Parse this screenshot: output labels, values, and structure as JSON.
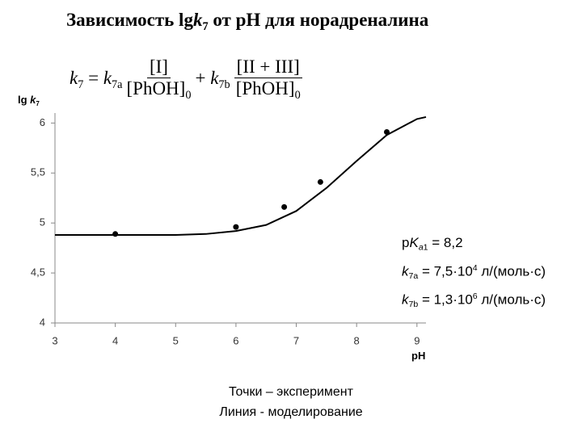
{
  "title": [
    {
      "text": "Зависимость lg",
      "style": "normal"
    },
    {
      "text": "k",
      "style": "italic"
    },
    {
      "text": "7",
      "style": "sub"
    },
    {
      "text": " от pH для норадреналина",
      "style": "normal"
    }
  ],
  "formula": [
    {
      "segments": [
        {
          "text": "k",
          "style": "italic"
        },
        {
          "text": "7",
          "style": "sub"
        },
        {
          "text": " = ",
          "style": "normal"
        },
        {
          "text": "k",
          "style": "italic"
        },
        {
          "text": "7a",
          "style": "sub"
        }
      ]
    },
    {
      "num": [
        {
          "text": "[I]",
          "style": "normal"
        }
      ],
      "den": [
        {
          "text": "[PhOH]",
          "style": "normal"
        },
        {
          "text": "0",
          "style": "sub"
        }
      ]
    },
    {
      "segments": [
        {
          "text": " + ",
          "style": "normal"
        },
        {
          "text": "k",
          "style": "italic"
        },
        {
          "text": "7b",
          "style": "sub"
        }
      ]
    },
    {
      "num": [
        {
          "text": "[II + III]",
          "style": "normal"
        }
      ],
      "den": [
        {
          "text": "[PhOH]",
          "style": "normal"
        },
        {
          "text": "0",
          "style": "sub"
        }
      ]
    }
  ],
  "chart_data": {
    "type": "line",
    "y_label": [
      {
        "text": "lg ",
        "style": "normal"
      },
      {
        "text": "k",
        "style": "italic"
      },
      {
        "text": "7",
        "style": "sub"
      }
    ],
    "x_label": "pH",
    "xlim": [
      3,
      9.15
    ],
    "xticks": [
      3,
      4,
      5,
      6,
      7,
      8,
      9
    ],
    "ylim": [
      4,
      6.1
    ],
    "yticks": [
      4,
      {
        "value": 4.5,
        "label": "4,5"
      },
      5,
      {
        "value": 5.5,
        "label": "5,5"
      },
      6
    ],
    "series": [
      {
        "color": "#000000",
        "marker": "none",
        "x": [
          3,
          4,
          5,
          5.5,
          6,
          6.5,
          7,
          7.5,
          8,
          8.5,
          9,
          9.15
        ],
        "values": [
          4.88,
          4.88,
          4.88,
          4.89,
          4.92,
          4.98,
          5.12,
          5.35,
          5.62,
          5.88,
          6.04,
          6.06
        ]
      },
      {
        "color": "#000000",
        "marker": "dot",
        "x": [
          4,
          6,
          6.8,
          7.4,
          8.5
        ],
        "values": [
          4.89,
          4.96,
          5.16,
          5.41,
          5.91
        ]
      }
    ],
    "annotations": [
      [
        {
          "text": "p",
          "style": "normal"
        },
        {
          "text": "K",
          "style": "italic"
        },
        {
          "text": "a",
          "style": "isub"
        },
        {
          "text": "1",
          "style": "sub"
        },
        {
          "text": " = 8,2",
          "style": "normal"
        }
      ],
      [
        {
          "text": "k",
          "style": "italic"
        },
        {
          "text": "7a",
          "style": "sub"
        },
        {
          "text": " = 7,5·10",
          "style": "normal"
        },
        {
          "text": "4",
          "style": "sup"
        },
        {
          "text": " л/(моль·с)",
          "style": "normal"
        }
      ],
      [
        {
          "text": "k",
          "style": "italic"
        },
        {
          "text": "7b",
          "style": "sub"
        },
        {
          "text": " = 1,3·10",
          "style": "normal"
        },
        {
          "text": "6",
          "style": "sup"
        },
        {
          "text": " л/(моль·с)",
          "style": "normal"
        }
      ]
    ]
  },
  "notes": [
    "Точки – эксперимент",
    "Линия - моделирование"
  ]
}
